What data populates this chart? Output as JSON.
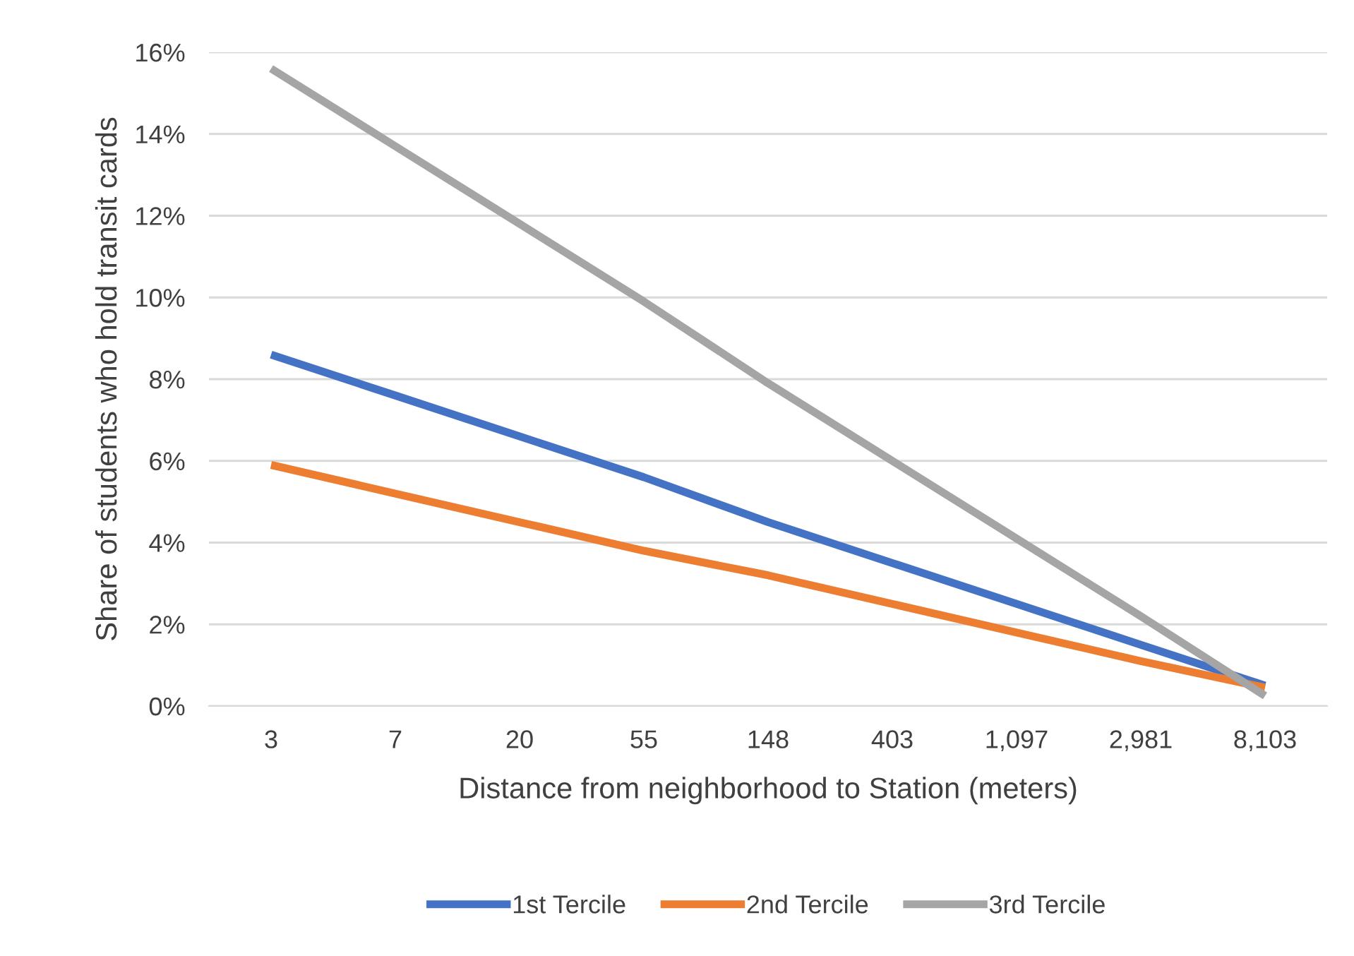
{
  "chart_data": {
    "type": "line",
    "xlabel": "Distance from neighborhood to Station (meters)",
    "ylabel": "Share of students who hold transit cards",
    "categories": [
      "3",
      "7",
      "20",
      "55",
      "148",
      "403",
      "1,097",
      "2,981",
      "8,103"
    ],
    "series": [
      {
        "name": "1st Tercile",
        "color": "#4472c4",
        "values": [
          8.6,
          7.6,
          6.6,
          5.6,
          4.5,
          3.5,
          2.5,
          1.5,
          0.5
        ]
      },
      {
        "name": "2nd Tercile",
        "color": "#ed7d31",
        "values": [
          5.9,
          5.2,
          4.5,
          3.8,
          3.2,
          2.5,
          1.8,
          1.1,
          0.45
        ]
      },
      {
        "name": "3rd Tercile",
        "color": "#a5a5a5",
        "values": [
          15.6,
          13.7,
          11.8,
          9.9,
          7.9,
          6.0,
          4.1,
          2.2,
          0.25
        ]
      }
    ],
    "ylim": [
      0,
      16
    ],
    "yticks": [
      {
        "value": 0,
        "label": "0%"
      },
      {
        "value": 2,
        "label": "2%"
      },
      {
        "value": 4,
        "label": "4%"
      },
      {
        "value": 6,
        "label": "6%"
      },
      {
        "value": 8,
        "label": "8%"
      },
      {
        "value": 10,
        "label": "10%"
      },
      {
        "value": 12,
        "label": "12%"
      },
      {
        "value": 14,
        "label": "14%"
      },
      {
        "value": 16,
        "label": "16%"
      }
    ],
    "grid": "y",
    "legend": "bottom",
    "line_style": "solid"
  }
}
